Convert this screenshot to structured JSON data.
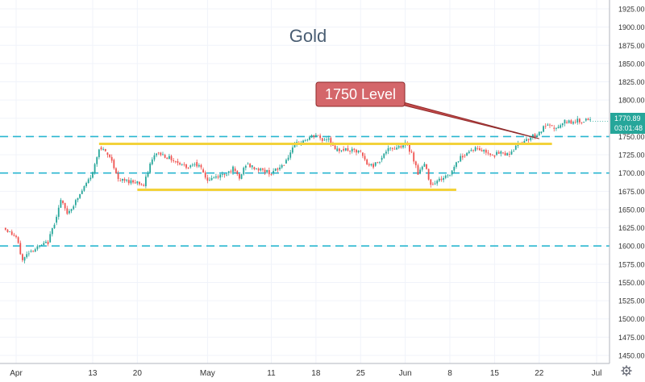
{
  "chart_data": {
    "type": "candlestick",
    "title": "Gold",
    "ylim": [
      1425,
      1935
    ],
    "y_ticks": [
      1450,
      1475,
      1500,
      1525,
      1550,
      1575,
      1600,
      1625,
      1650,
      1675,
      1700,
      1725,
      1750,
      1775,
      1800,
      1825,
      1850,
      1875,
      1900,
      1925
    ],
    "y_tick_labels": [
      "1450.00",
      "1475.00",
      "1500.00",
      "1525.00",
      "1550.00",
      "1575.00",
      "1600.00",
      "1625.00",
      "1650.00",
      "1675.00",
      "1700.00",
      "1725.00",
      "1750.00",
      "1775.00",
      "1800.00",
      "1825.00",
      "1850.00",
      "1875.00",
      "1900.00",
      "1925.00"
    ],
    "x_ticks": [
      {
        "label": "Apr",
        "date": "2020-04-01"
      },
      {
        "label": "13",
        "date": "2020-04-13"
      },
      {
        "label": "20",
        "date": "2020-04-20"
      },
      {
        "label": "May",
        "date": "2020-05-01"
      },
      {
        "label": "11",
        "date": "2020-05-11"
      },
      {
        "label": "18",
        "date": "2020-05-18"
      },
      {
        "label": "25",
        "date": "2020-05-25"
      },
      {
        "label": "Jun",
        "date": "2020-06-01"
      },
      {
        "label": "8",
        "date": "2020-06-08"
      },
      {
        "label": "15",
        "date": "2020-06-15"
      },
      {
        "label": "22",
        "date": "2020-06-22"
      },
      {
        "label": "Jul",
        "date": "2020-07-01"
      }
    ],
    "horizontal_levels": [
      1750,
      1700,
      1600
    ],
    "support_resistance": [
      {
        "from": "2020-04-14",
        "to": "2020-06-24",
        "value": 1740
      },
      {
        "from": "2020-04-20",
        "to": "2020-06-09",
        "value": 1677
      }
    ],
    "annotation": {
      "text": "1750 Level",
      "points_to": {
        "date": "2020-06-22",
        "value": 1747
      }
    },
    "last_price": {
      "value": 1770.89,
      "label": "1770.89",
      "countdown": "03:01:48"
    },
    "price_path": [
      [
        "2020-03-30",
        1625
      ],
      [
        "2020-04-01",
        1612
      ],
      [
        "2020-04-02",
        1580
      ],
      [
        "2020-04-03",
        1592
      ],
      [
        "2020-04-06",
        1605
      ],
      [
        "2020-04-07",
        1632
      ],
      [
        "2020-04-08",
        1662
      ],
      [
        "2020-04-09",
        1645
      ],
      [
        "2020-04-10",
        1656
      ],
      [
        "2020-04-13",
        1700
      ],
      [
        "2020-04-14",
        1735
      ],
      [
        "2020-04-15",
        1728
      ],
      [
        "2020-04-16",
        1718
      ],
      [
        "2020-04-17",
        1690
      ],
      [
        "2020-04-20",
        1688
      ],
      [
        "2020-04-21",
        1682
      ],
      [
        "2020-04-22",
        1712
      ],
      [
        "2020-04-23",
        1728
      ],
      [
        "2020-04-24",
        1725
      ],
      [
        "2020-04-27",
        1712
      ],
      [
        "2020-04-28",
        1708
      ],
      [
        "2020-04-29",
        1715
      ],
      [
        "2020-04-30",
        1705
      ],
      [
        "2020-05-01",
        1690
      ],
      [
        "2020-05-04",
        1700
      ],
      [
        "2020-05-05",
        1706
      ],
      [
        "2020-05-06",
        1692
      ],
      [
        "2020-05-07",
        1712
      ],
      [
        "2020-05-08",
        1708
      ],
      [
        "2020-05-11",
        1700
      ],
      [
        "2020-05-12",
        1705
      ],
      [
        "2020-05-13",
        1713
      ],
      [
        "2020-05-14",
        1728
      ],
      [
        "2020-05-15",
        1740
      ],
      [
        "2020-05-18",
        1752
      ],
      [
        "2020-05-19",
        1745
      ],
      [
        "2020-05-20",
        1748
      ],
      [
        "2020-05-21",
        1730
      ],
      [
        "2020-05-22",
        1733
      ],
      [
        "2020-05-25",
        1728
      ],
      [
        "2020-05-26",
        1712
      ],
      [
        "2020-05-27",
        1710
      ],
      [
        "2020-05-28",
        1718
      ],
      [
        "2020-05-29",
        1730
      ],
      [
        "2020-06-01",
        1740
      ],
      [
        "2020-06-02",
        1728
      ],
      [
        "2020-06-03",
        1700
      ],
      [
        "2020-06-04",
        1712
      ],
      [
        "2020-06-05",
        1685
      ],
      [
        "2020-06-08",
        1698
      ],
      [
        "2020-06-09",
        1715
      ],
      [
        "2020-06-10",
        1724
      ],
      [
        "2020-06-11",
        1730
      ],
      [
        "2020-06-12",
        1734
      ],
      [
        "2020-06-15",
        1725
      ],
      [
        "2020-06-16",
        1728
      ],
      [
        "2020-06-17",
        1726
      ],
      [
        "2020-06-18",
        1732
      ],
      [
        "2020-06-19",
        1742
      ],
      [
        "2020-06-22",
        1755
      ],
      [
        "2020-06-23",
        1765
      ],
      [
        "2020-06-24",
        1762
      ],
      [
        "2020-06-25",
        1762
      ],
      [
        "2020-06-26",
        1770
      ],
      [
        "2020-06-29",
        1772
      ],
      [
        "2020-06-30",
        1771
      ]
    ]
  }
}
